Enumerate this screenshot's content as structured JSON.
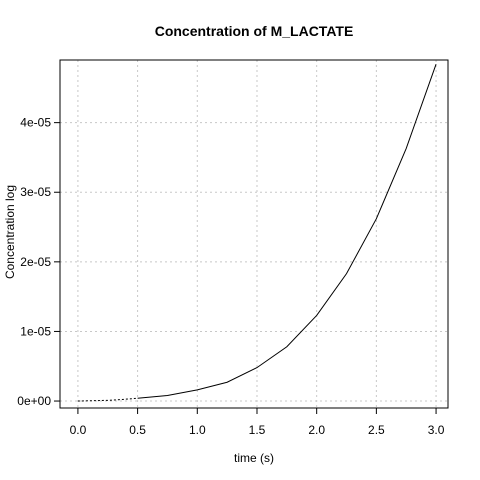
{
  "chart_data": {
    "type": "line",
    "title": "Concentration of M_LACTATE",
    "xlabel": "time (s)",
    "ylabel": "Concentration log",
    "xlim": [
      -0.15,
      3.1
    ],
    "ylim": [
      -1e-06,
      4.9e-05
    ],
    "grid": true,
    "x_ticks": [
      0,
      0.5,
      1,
      1.5,
      2,
      2.5,
      3
    ],
    "x_tick_labels": [
      "0.0",
      "0.5",
      "1.0",
      "1.5",
      "2.0",
      "2.5",
      "3.0"
    ],
    "y_ticks": [
      0,
      1e-05,
      2e-05,
      3e-05,
      4e-05
    ],
    "y_tick_labels": [
      "0e+00",
      "1e-05",
      "2e-05",
      "3e-05",
      "4e-05"
    ],
    "series": [
      {
        "x": [
          0.0,
          0.25,
          0.35,
          0.5,
          0.75,
          1.0,
          1.25,
          1.5,
          1.75,
          2.0,
          2.25,
          2.5,
          2.75,
          3.0
        ],
        "y": [
          0.0,
          1e-07,
          2e-07,
          4e-07,
          8e-07,
          1.6e-06,
          2.7e-06,
          4.8e-06,
          7.8e-06,
          1.23e-05,
          1.83e-05,
          2.62e-05,
          3.63e-05,
          4.84e-05
        ]
      }
    ]
  }
}
